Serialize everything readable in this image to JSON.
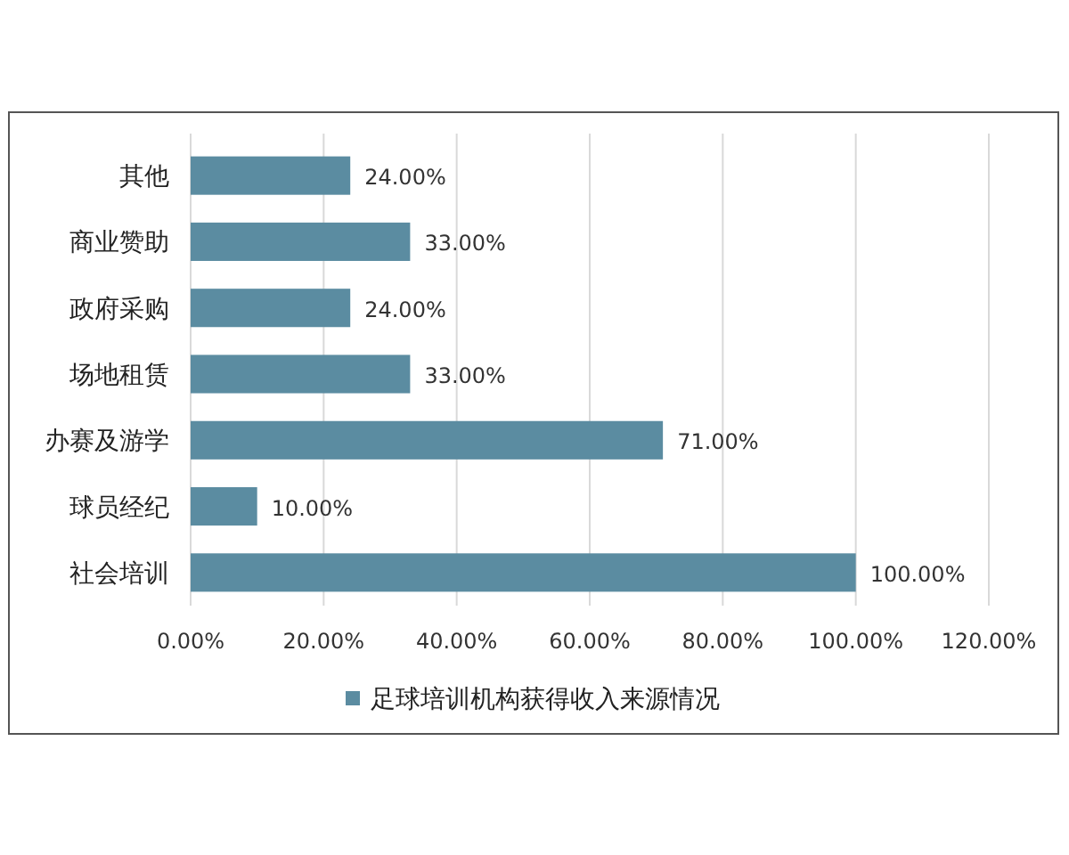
{
  "chart_data": {
    "type": "bar",
    "orientation": "horizontal",
    "categories": [
      "其他",
      "商业赞助",
      "政府采购",
      "场地租赁",
      "办赛及游学",
      "球员经纪",
      "社会培训"
    ],
    "series": [
      {
        "name": "足球培训机构获得收入来源情况",
        "color": "#5b8ca1",
        "values": [
          24,
          33,
          24,
          33,
          71,
          10,
          100
        ],
        "value_labels": [
          "24.00%",
          "33.00%",
          "24.00%",
          "33.00%",
          "71.00%",
          "10.00%",
          "100.00%"
        ]
      }
    ],
    "xlim": [
      0,
      120
    ],
    "xticks": [
      {
        "value": 0,
        "label": "0.00%"
      },
      {
        "value": 20,
        "label": "20.00%"
      },
      {
        "value": 40,
        "label": "40.00%"
      },
      {
        "value": 60,
        "label": "60.00%"
      },
      {
        "value": 80,
        "label": "80.00%"
      },
      {
        "value": 100,
        "label": "100.00%"
      },
      {
        "value": 120,
        "label": "120.00%"
      }
    ],
    "grid": "x",
    "legend": "bottom"
  }
}
